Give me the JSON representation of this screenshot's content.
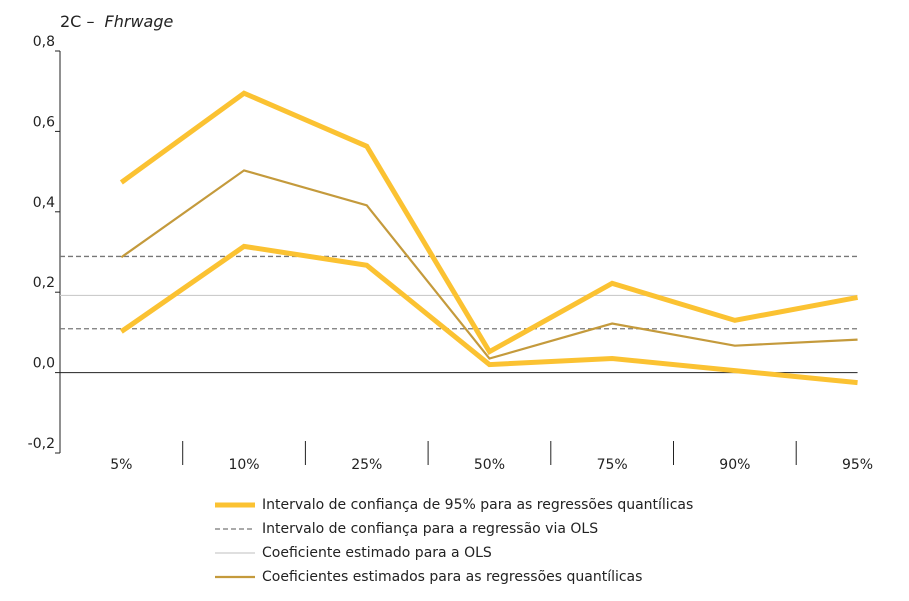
{
  "chart_data": {
    "type": "line",
    "title_prefix": "2C –",
    "title_variable": "Fhrwage",
    "categories": [
      "5%",
      "10%",
      "25%",
      "50%",
      "75%",
      "90%",
      "95%"
    ],
    "ylim": [
      -0.2,
      0.8
    ],
    "yticks": [
      {
        "value": -0.2,
        "label": "-0,2"
      },
      {
        "value": 0,
        "label": "0,0"
      },
      {
        "value": 0.2,
        "label": "0,2"
      },
      {
        "value": 0.4,
        "label": "0,4"
      },
      {
        "value": 0.6,
        "label": "0,6"
      },
      {
        "value": 0.8,
        "label": "0,8"
      }
    ],
    "quantile_ci": {
      "name": "Intervalo de confiança de 95% para as regressões quantílicas",
      "color": "#fbc232",
      "upper": [
        0.473,
        0.695,
        0.563,
        0.052,
        0.222,
        0.13,
        0.187
      ],
      "lower": [
        0.102,
        0.314,
        0.267,
        0.02,
        0.035,
        0.005,
        -0.025
      ]
    },
    "ols_ci": {
      "name": "Intervalo de confiança para a regressão via OLS",
      "color": "#777777",
      "upper": 0.289,
      "lower": 0.109
    },
    "ols": {
      "name": "Coeficiente estimado para a OLS",
      "color": "#cccccc",
      "value": 0.192
    },
    "quantile": {
      "name": "Coeficientes estimados para as regressões quantílicas",
      "color": "#c49a3c",
      "values": [
        0.287,
        0.503,
        0.416,
        0.035,
        0.122,
        0.067,
        0.082
      ]
    }
  }
}
